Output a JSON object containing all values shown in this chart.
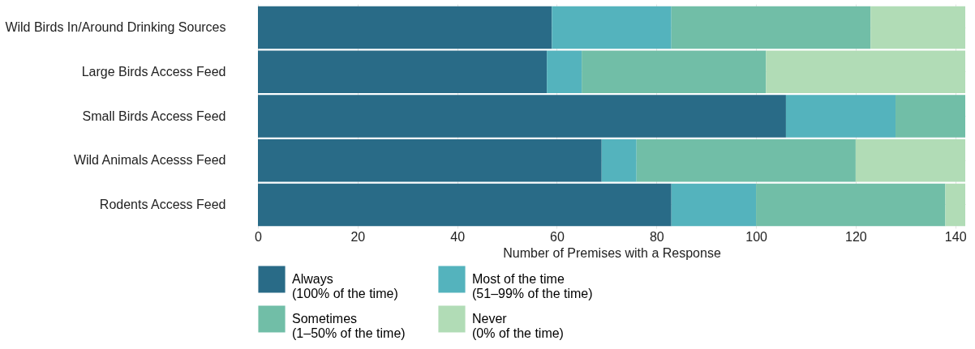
{
  "chart_data": {
    "type": "bar",
    "orientation": "horizontal",
    "stacked": true,
    "xlabel": "Number of Premises with a Response",
    "categories": [
      "Wild Birds In/Around Drinking Sources",
      "Large Birds Access Feed",
      "Small Birds Access Feed",
      "Wild Animals Acesss Feed",
      "Rodents Access Feed"
    ],
    "series": [
      {
        "name": "Always\n(100% of the time)",
        "color": "#296b87",
        "values": [
          59,
          58,
          106,
          69,
          83
        ]
      },
      {
        "name": "Most of the time\n(51–99% of the time)",
        "color": "#54b3bd",
        "values": [
          24,
          7,
          22,
          7,
          17
        ]
      },
      {
        "name": "Sometimes\n(1–50% of the time)",
        "color": "#71bea7",
        "values": [
          40,
          37,
          14,
          44,
          38
        ]
      },
      {
        "name": "Never\n(0% of the time)",
        "color": "#b1dcb6",
        "values": [
          19,
          40,
          null,
          22,
          4
        ]
      }
    ],
    "xlim": [
      0,
      142
    ],
    "xticks": [
      0,
      20,
      40,
      60,
      80,
      100,
      120,
      140
    ],
    "grid": true,
    "legend": "bottom"
  }
}
